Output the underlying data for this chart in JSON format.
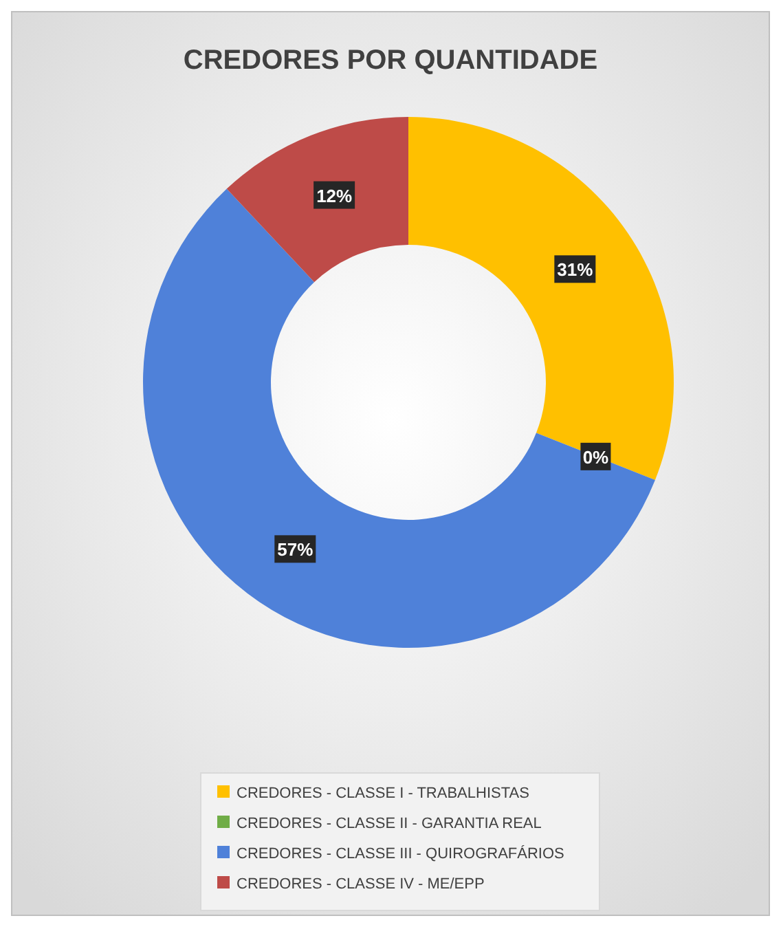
{
  "chart_data": {
    "type": "donut",
    "title": "CREDORES POR QUANTIDADE",
    "categories": [
      "CREDORES - CLASSE I - TRABALHISTAS",
      "CREDORES - CLASSE II - GARANTIA REAL",
      "CREDORES - CLASSE III - QUIROGRAFÁRIOS",
      "CREDORES - CLASSE IV - ME/EPP"
    ],
    "values": [
      31,
      0,
      57,
      12
    ],
    "colors": [
      "#ffc000",
      "#70ad47",
      "#4f81d9",
      "#be4b48"
    ],
    "value_labels": [
      "31%",
      "0%",
      "57%",
      "12%"
    ],
    "legend": "bottom"
  }
}
